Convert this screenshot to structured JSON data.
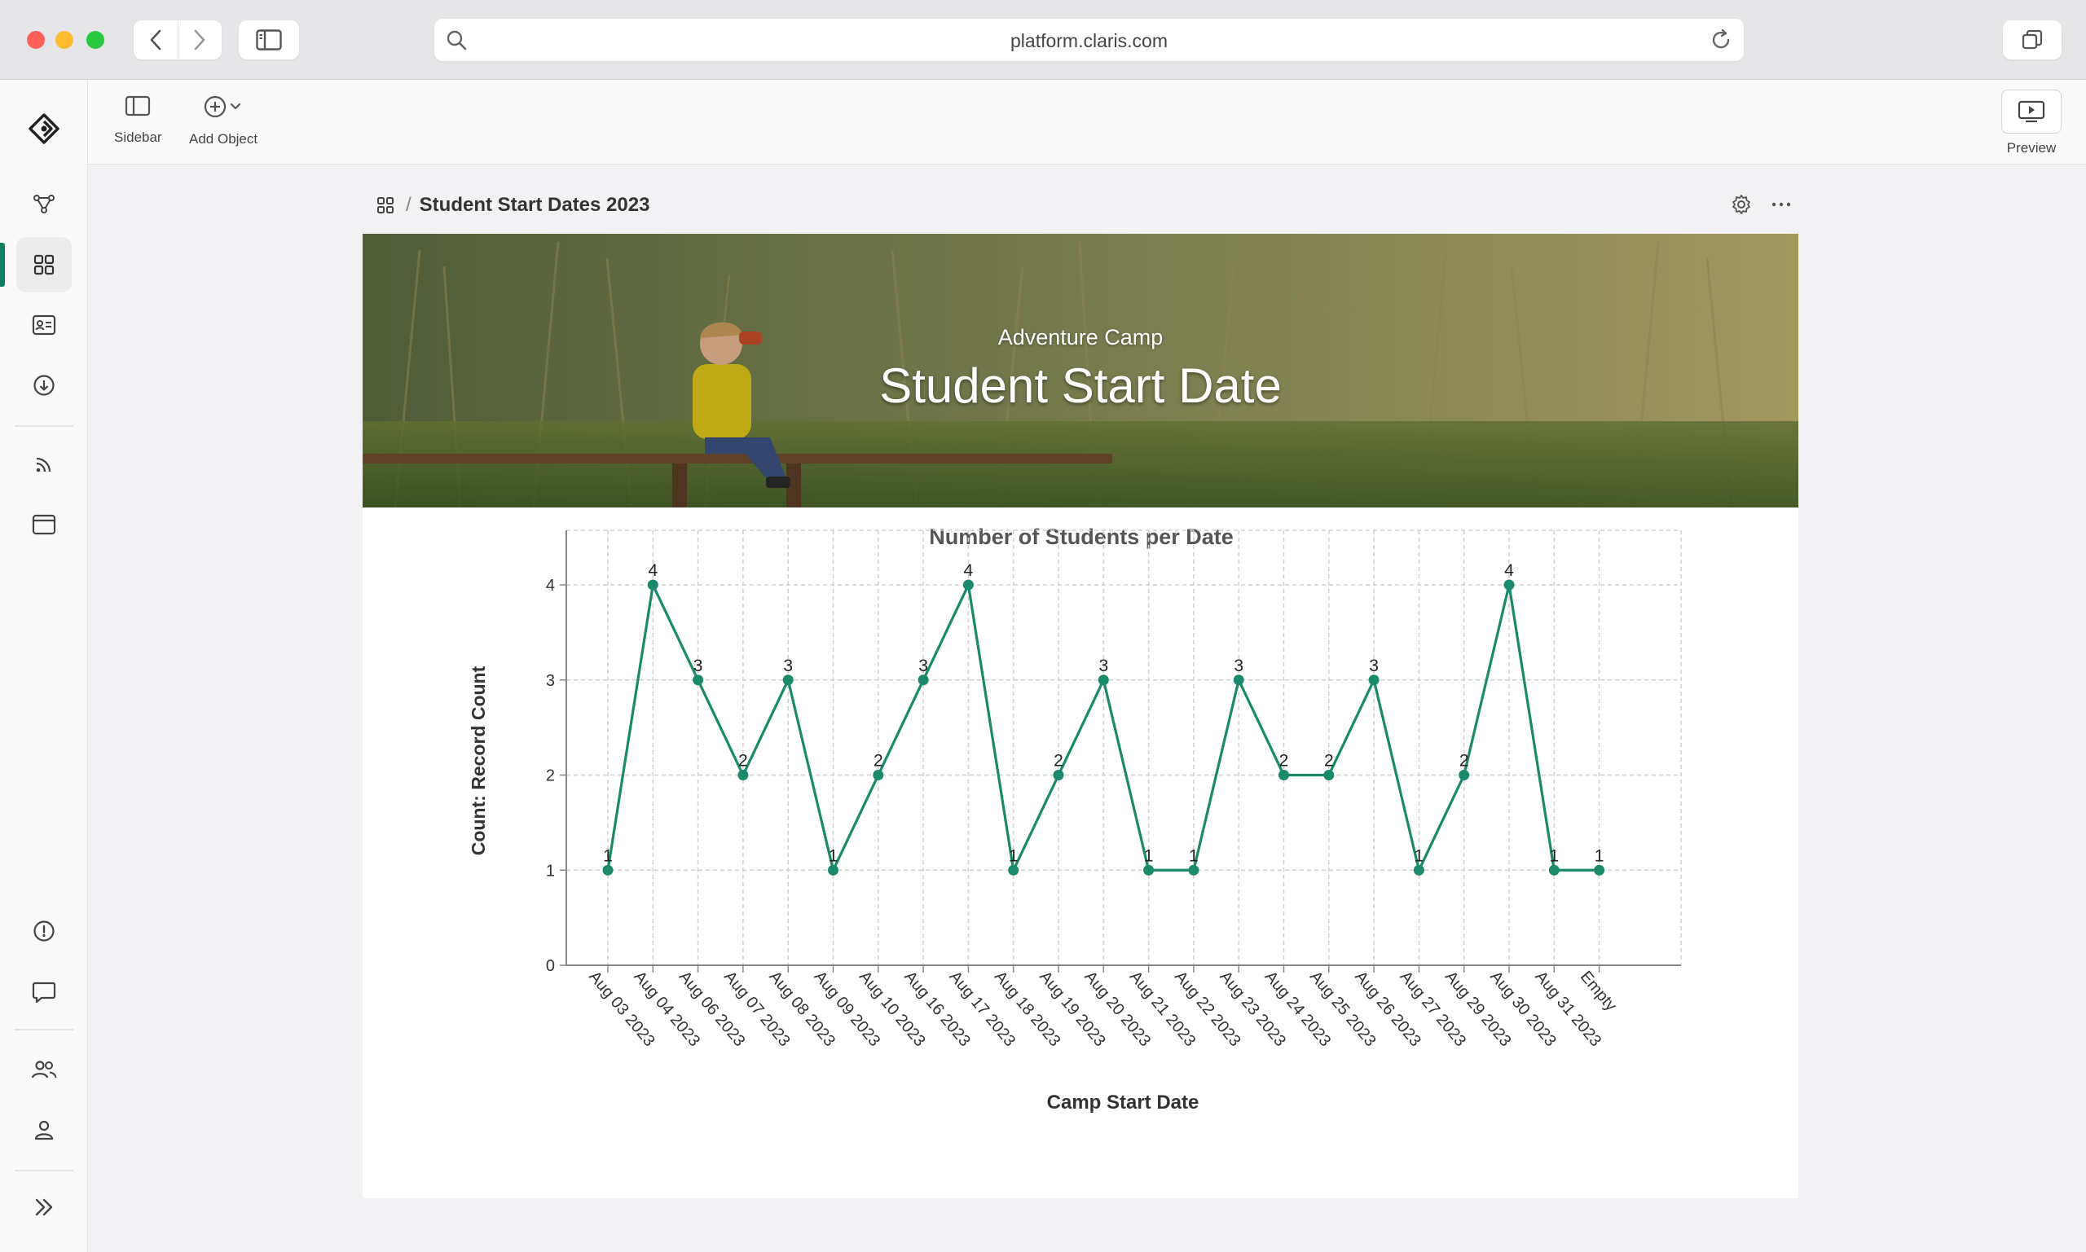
{
  "browser": {
    "url": "platform.claris.com"
  },
  "toolbar": {
    "sidebar_label": "Sidebar",
    "add_object_label": "Add Object",
    "preview_label": "Preview"
  },
  "page": {
    "title": "Student Start Dates 2023",
    "breadcrumb_separator": "/"
  },
  "hero": {
    "subtitle": "Adventure Camp",
    "title": "Student Start Date"
  },
  "colors": {
    "accent": "#0c7f5f",
    "line": "#1a8a6a"
  },
  "chart_data": {
    "type": "line",
    "title": "Number of Students per Date",
    "xlabel": "Camp Start Date",
    "ylabel": "Count: Record Count",
    "ylim": [
      0,
      4.3
    ],
    "yticks": [
      "0",
      "1",
      "2",
      "3",
      "4"
    ],
    "grid": true,
    "categories": [
      "Aug 03 2023",
      "Aug 04 2023",
      "Aug 06 2023",
      "Aug 07 2023",
      "Aug 08 2023",
      "Aug 09 2023",
      "Aug 10 2023",
      "Aug 16 2023",
      "Aug 17 2023",
      "Aug 18 2023",
      "Aug 19 2023",
      "Aug 20 2023",
      "Aug 21 2023",
      "Aug 22 2023",
      "Aug 23 2023",
      "Aug 24 2023",
      "Aug 25 2023",
      "Aug 26 2023",
      "Aug 27 2023",
      "Aug 29 2023",
      "Aug 30 2023",
      "Aug 31 2023",
      "Empty"
    ],
    "values": [
      1,
      4,
      3,
      2,
      3,
      1,
      2,
      3,
      4,
      1,
      2,
      3,
      1,
      1,
      3,
      2,
      2,
      3,
      1,
      2,
      4,
      1,
      1
    ]
  }
}
